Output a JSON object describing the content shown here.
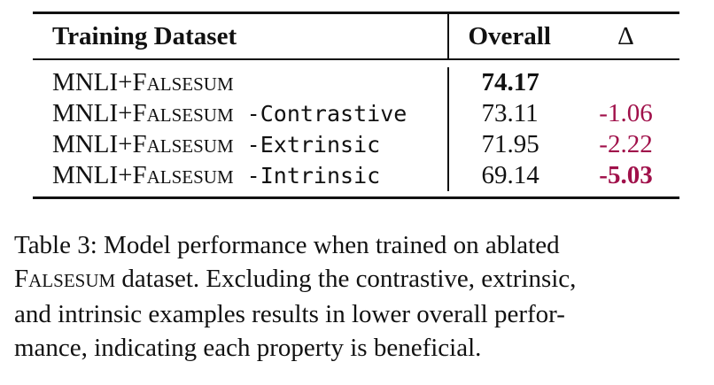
{
  "table": {
    "header": {
      "dataset": "Training Dataset",
      "overall": "Overall",
      "delta": "Δ"
    },
    "rows": [
      {
        "prefix": "MNLI+F",
        "sc_rest": "ALSESUM",
        "suffix": "",
        "overall": "74.17",
        "delta": ""
      },
      {
        "prefix": "MNLI+F",
        "sc_rest": "ALSESUM",
        "suffix": " -Contrastive",
        "overall": "73.11",
        "delta": "-1.06"
      },
      {
        "prefix": "MNLI+F",
        "sc_rest": "ALSESUM",
        "suffix": " -Extrinsic",
        "overall": "71.95",
        "delta": "-2.22"
      },
      {
        "prefix": "MNLI+F",
        "sc_rest": "ALSESUM",
        "suffix": " -Intrinsic",
        "overall": "69.14",
        "delta": "-5.03"
      }
    ],
    "colors": {
      "negative": "#a0104a"
    }
  },
  "caption": {
    "line1": "Table 3: Model performance when trained on ablated",
    "sc_first": "F",
    "sc_rest": "ALSESUM",
    "line2_rest": " dataset. Excluding the contrastive, extrinsic,",
    "line3": "and intrinsic examples results in lower overall perfor-",
    "line4": "mance, indicating each property is beneficial."
  }
}
